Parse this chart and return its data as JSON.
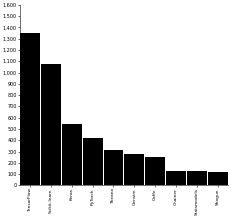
{
  "categories": [
    "TensorFlow",
    "Scikit-learn",
    "Keras",
    "PyTorch",
    "Theano",
    "Gensim",
    "Caffe",
    "Chainer",
    "Statsmodels",
    "Shogun"
  ],
  "values": [
    1350,
    1075,
    540,
    420,
    310,
    280,
    250,
    130,
    130,
    120
  ],
  "bar_color": "#000000",
  "ylim": [
    0,
    1600
  ],
  "yticks": [
    0,
    100,
    200,
    300,
    400,
    500,
    600,
    700,
    800,
    900,
    1000,
    1100,
    1200,
    1300,
    1400,
    1500,
    1600
  ],
  "ytick_labels": [
    "0",
    "100",
    "200",
    "300",
    "400",
    "500",
    "600",
    "700",
    "800",
    "900",
    "1,000",
    "1,100",
    "1,200",
    "1,300",
    "1,400",
    "1,500",
    "1,600"
  ],
  "tick_fontsize": 3.5,
  "label_fontsize": 3.2,
  "bar_width": 0.95,
  "figsize": [
    2.31,
    2.18
  ],
  "dpi": 100
}
